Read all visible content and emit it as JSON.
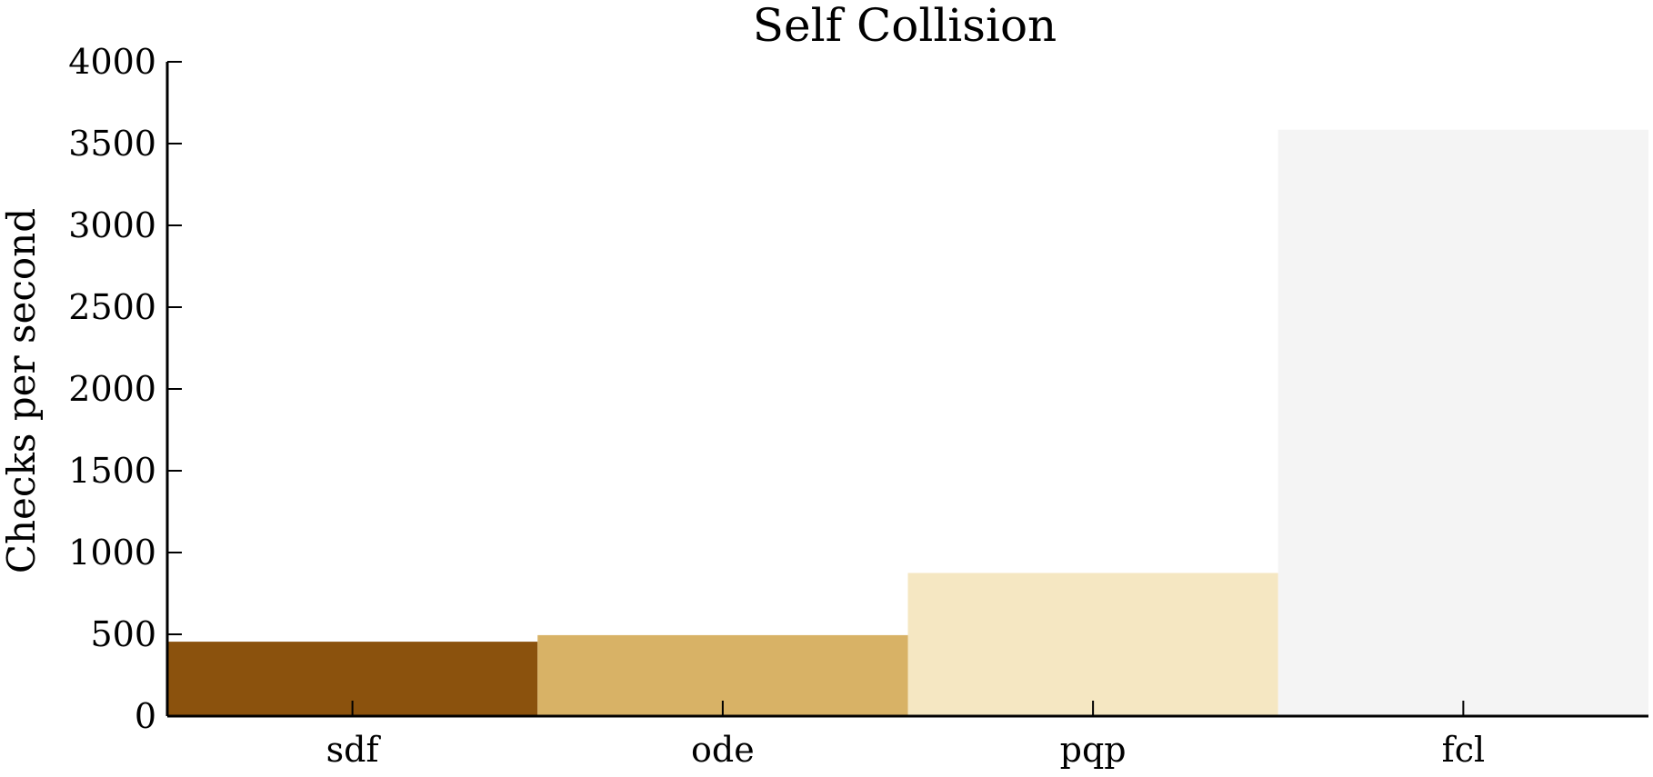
{
  "chart_data": {
    "type": "bar",
    "title": "Self Collision",
    "xlabel": "",
    "ylabel": "Checks per second",
    "categories": [
      "sdf",
      "ode",
      "pqp",
      "fcl"
    ],
    "values": [
      455,
      495,
      875,
      3585
    ],
    "colors": [
      "#8b520d",
      "#d8b266",
      "#f5e7c2",
      "#f4f4f4"
    ],
    "ylim": [
      0,
      4000
    ],
    "yticks": [
      "0",
      "500",
      "1000",
      "1500",
      "2000",
      "2500",
      "3000",
      "3500",
      "4000"
    ],
    "grid": false,
    "legend": "none"
  }
}
